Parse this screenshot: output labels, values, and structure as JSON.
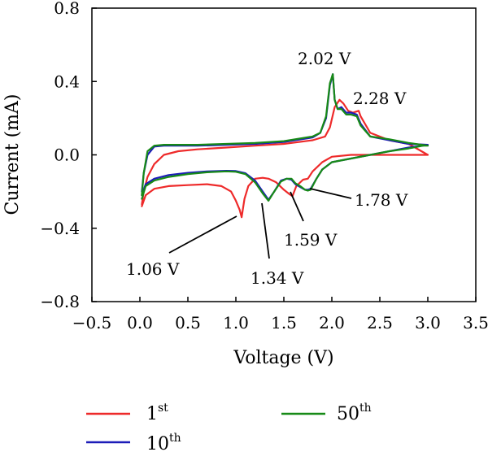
{
  "chart_data": {
    "type": "line",
    "xlabel": "Voltage (V)",
    "ylabel": "Current (mA)",
    "xlim": [
      -0.5,
      3.5
    ],
    "ylim": [
      -0.8,
      0.8
    ],
    "xticks": [
      -0.5,
      0.0,
      0.5,
      1.0,
      1.5,
      2.0,
      2.5,
      3.0,
      3.5
    ],
    "xtick_labels": [
      "−0.5",
      "0.0",
      "0.5",
      "1.0",
      "1.5",
      "2.0",
      "2.5",
      "3.0",
      "3.5"
    ],
    "yticks": [
      0.8,
      0.4,
      0.0,
      -0.4,
      -0.8
    ],
    "ytick_labels": [
      "0.8",
      "0.4",
      "0.0",
      "−0.4",
      "−0.8"
    ],
    "grid": false,
    "legend_position": "bottom",
    "series": [
      {
        "name": "1st",
        "color": "#ee2a2a",
        "x": [
          0.02,
          0.06,
          0.15,
          0.3,
          0.5,
          0.7,
          0.85,
          0.95,
          1.0,
          1.04,
          1.06,
          1.09,
          1.13,
          1.2,
          1.28,
          1.34,
          1.42,
          1.5,
          1.56,
          1.59,
          1.63,
          1.7,
          1.75,
          1.8,
          1.9,
          2.0,
          2.2,
          2.4,
          2.6,
          2.8,
          3.0,
          2.8,
          2.6,
          2.4,
          2.3,
          2.28,
          2.22,
          2.17,
          2.12,
          2.08,
          2.03,
          1.98,
          1.93,
          1.8,
          1.5,
          1.2,
          0.9,
          0.6,
          0.4,
          0.25,
          0.15,
          0.08,
          0.04,
          0.02
        ],
        "y": [
          -0.28,
          -0.22,
          -0.185,
          -0.17,
          -0.165,
          -0.16,
          -0.17,
          -0.2,
          -0.25,
          -0.3,
          -0.34,
          -0.24,
          -0.17,
          -0.13,
          -0.125,
          -0.13,
          -0.15,
          -0.19,
          -0.215,
          -0.225,
          -0.17,
          -0.135,
          -0.13,
          -0.09,
          -0.04,
          -0.01,
          0.0,
          0.0,
          0.0,
          0.0,
          0.0,
          0.06,
          0.08,
          0.12,
          0.21,
          0.24,
          0.23,
          0.24,
          0.28,
          0.3,
          0.26,
          0.15,
          0.1,
          0.08,
          0.06,
          0.05,
          0.04,
          0.03,
          0.02,
          0.0,
          -0.05,
          -0.12,
          -0.2,
          -0.27
        ]
      },
      {
        "name": "10th",
        "color": "#1c1cb8",
        "x": [
          0.02,
          0.06,
          0.15,
          0.3,
          0.5,
          0.7,
          0.9,
          1.0,
          1.1,
          1.2,
          1.28,
          1.34,
          1.4,
          1.47,
          1.53,
          1.58,
          1.62,
          1.67,
          1.72,
          1.75,
          1.78,
          1.84,
          1.9,
          2.0,
          2.2,
          2.4,
          2.6,
          2.8,
          2.95,
          3.0,
          2.8,
          2.6,
          2.4,
          2.3,
          2.26,
          2.2,
          2.15,
          2.1,
          2.06,
          2.03,
          2.01,
          1.98,
          1.94,
          1.88,
          1.8,
          1.5,
          1.2,
          0.9,
          0.6,
          0.4,
          0.25,
          0.15,
          0.08,
          0.04,
          0.02
        ],
        "y": [
          -0.22,
          -0.16,
          -0.13,
          -0.11,
          -0.098,
          -0.09,
          -0.087,
          -0.088,
          -0.1,
          -0.14,
          -0.2,
          -0.245,
          -0.2,
          -0.14,
          -0.13,
          -0.135,
          -0.16,
          -0.175,
          -0.19,
          -0.19,
          -0.185,
          -0.13,
          -0.08,
          -0.04,
          -0.02,
          0.0,
          0.02,
          0.04,
          0.05,
          0.055,
          0.06,
          0.08,
          0.1,
          0.17,
          0.22,
          0.23,
          0.23,
          0.26,
          0.25,
          0.3,
          0.44,
          0.38,
          0.2,
          0.12,
          0.095,
          0.07,
          0.06,
          0.055,
          0.05,
          0.05,
          0.05,
          0.045,
          0.0,
          -0.1,
          -0.2
        ]
      },
      {
        "name": "50th",
        "color": "#178a17",
        "x": [
          0.02,
          0.06,
          0.15,
          0.3,
          0.5,
          0.7,
          0.9,
          1.0,
          1.1,
          1.2,
          1.28,
          1.34,
          1.4,
          1.47,
          1.53,
          1.58,
          1.62,
          1.67,
          1.72,
          1.75,
          1.78,
          1.84,
          1.9,
          2.0,
          2.2,
          2.4,
          2.6,
          2.8,
          2.95,
          3.0,
          2.8,
          2.6,
          2.4,
          2.3,
          2.26,
          2.2,
          2.15,
          2.1,
          2.06,
          2.03,
          2.01,
          1.98,
          1.94,
          1.88,
          1.8,
          1.5,
          1.2,
          0.9,
          0.6,
          0.4,
          0.25,
          0.15,
          0.08,
          0.04,
          0.02
        ],
        "y": [
          -0.24,
          -0.17,
          -0.14,
          -0.12,
          -0.105,
          -0.095,
          -0.09,
          -0.092,
          -0.105,
          -0.15,
          -0.21,
          -0.25,
          -0.2,
          -0.145,
          -0.13,
          -0.13,
          -0.155,
          -0.17,
          -0.19,
          -0.195,
          -0.19,
          -0.13,
          -0.08,
          -0.04,
          -0.02,
          0.0,
          0.02,
          0.035,
          0.05,
          0.05,
          0.065,
          0.085,
          0.1,
          0.16,
          0.21,
          0.22,
          0.22,
          0.25,
          0.25,
          0.3,
          0.44,
          0.39,
          0.21,
          0.12,
          0.1,
          0.075,
          0.065,
          0.06,
          0.055,
          0.055,
          0.055,
          0.05,
          0.02,
          -0.1,
          -0.22
        ]
      }
    ],
    "legend": [
      {
        "base": "1",
        "sup": "st",
        "color": "#ee2a2a"
      },
      {
        "base": "10",
        "sup": "th",
        "color": "#1c1cb8"
      },
      {
        "base": "50",
        "sup": "th",
        "color": "#178a17"
      }
    ],
    "annotations": [
      {
        "text": "2.02 V"
      },
      {
        "text": "2.28 V"
      },
      {
        "text": "1.78 V"
      },
      {
        "text": "1.59 V"
      },
      {
        "text": "1.34 V"
      },
      {
        "text": "1.06 V"
      }
    ]
  }
}
